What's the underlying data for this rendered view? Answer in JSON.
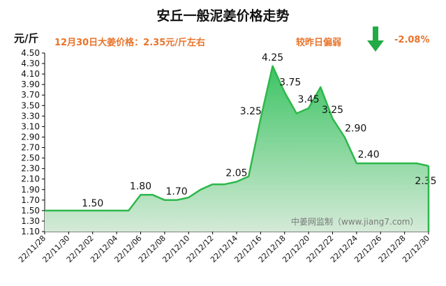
{
  "header": {
    "title": "安丘一般泥姜价格走势",
    "unit": "元/斤",
    "price_note": "12月30日大姜价格：2.35元/斤左右",
    "compare": "较昨日偏弱",
    "change": "-2.08%"
  },
  "colors": {
    "line": "#2db84a",
    "fill_top": "#3dc464",
    "fill_bottom": "#d4ead7",
    "accent_text": "#e8732a",
    "arrow": "#22aa44"
  },
  "chart_data": {
    "type": "area",
    "title": "安丘一般泥姜价格走势",
    "ylabel": "元/斤",
    "xlabel": "",
    "ylim": [
      1.1,
      4.5
    ],
    "yticks": [
      "1.10",
      "1.30",
      "1.50",
      "1.70",
      "1.90",
      "2.10",
      "2.30",
      "2.50",
      "2.70",
      "2.90",
      "3.10",
      "3.30",
      "3.50",
      "3.70",
      "3.90",
      "4.10",
      "4.30",
      "4.50"
    ],
    "xtick_labels": [
      "22/11/28",
      "22/11/30",
      "22/12/02",
      "22/12/04",
      "22/12/06",
      "22/12/08",
      "22/12/10",
      "22/12/12",
      "22/12/14",
      "22/12/16",
      "22/12/18",
      "22/12/20",
      "22/12/22",
      "22/12/24",
      "22/12/26",
      "22/12/28",
      "22/12/30"
    ],
    "x": [
      "22/11/28",
      "22/11/29",
      "22/11/30",
      "22/12/01",
      "22/12/02",
      "22/12/03",
      "22/12/04",
      "22/12/05",
      "22/12/06",
      "22/12/07",
      "22/12/08",
      "22/12/09",
      "22/12/10",
      "22/12/11",
      "22/12/12",
      "22/12/13",
      "22/12/14",
      "22/12/15",
      "22/12/16",
      "22/12/17",
      "22/12/18",
      "22/12/19",
      "22/12/20",
      "22/12/21",
      "22/12/22",
      "22/12/23",
      "22/12/24",
      "22/12/25",
      "22/12/26",
      "22/12/27",
      "22/12/28",
      "22/12/29",
      "22/12/30"
    ],
    "values": [
      1.5,
      1.5,
      1.5,
      1.5,
      1.5,
      1.5,
      1.5,
      1.5,
      1.8,
      1.8,
      1.7,
      1.7,
      1.75,
      1.9,
      2.0,
      2.0,
      2.05,
      2.15,
      3.25,
      4.25,
      3.75,
      3.35,
      3.45,
      3.85,
      3.25,
      2.9,
      2.4,
      2.4,
      2.4,
      2.4,
      2.4,
      2.4,
      2.35
    ],
    "data_labels": [
      {
        "x": "22/12/02",
        "text": "1.50"
      },
      {
        "x": "22/12/06",
        "text": "1.80"
      },
      {
        "x": "22/12/09",
        "text": "1.70"
      },
      {
        "x": "22/12/14",
        "text": "2.05"
      },
      {
        "x": "22/12/16",
        "text": "3.25"
      },
      {
        "x": "22/12/17",
        "text": "4.25"
      },
      {
        "x": "22/12/18",
        "text": "3.75"
      },
      {
        "x": "22/12/20",
        "text": "3.45"
      },
      {
        "x": "22/12/22",
        "text": "3.25"
      },
      {
        "x": "22/12/23",
        "text": "2.90"
      },
      {
        "x": "22/12/25",
        "text": "2.40"
      },
      {
        "x": "22/12/30",
        "text": "2.35"
      }
    ],
    "watermark": "中姜网监制（www.jiang7.com）",
    "grid": false,
    "legend": "none"
  }
}
